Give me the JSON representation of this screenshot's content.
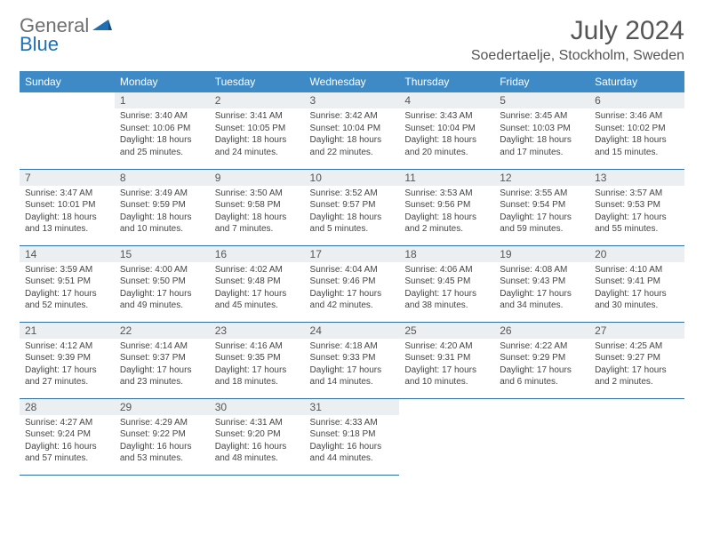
{
  "logo": {
    "gray": "General",
    "blue": "Blue"
  },
  "title": "July 2024",
  "location": "Soedertaelje, Stockholm, Sweden",
  "colors": {
    "header_bg": "#3d8ac7",
    "header_text": "#ffffff",
    "daynum_bg": "#eceff1",
    "row_border": "#2f6fa8",
    "logo_gray": "#6f6f6f",
    "logo_blue": "#1f6fb5"
  },
  "calendar": {
    "weekdays": [
      "Sunday",
      "Monday",
      "Tuesday",
      "Wednesday",
      "Thursday",
      "Friday",
      "Saturday"
    ],
    "first_weekday_index": 1,
    "days": [
      {
        "n": 1,
        "sunrise": "3:40 AM",
        "sunset": "10:06 PM",
        "daylight": "18 hours and 25 minutes."
      },
      {
        "n": 2,
        "sunrise": "3:41 AM",
        "sunset": "10:05 PM",
        "daylight": "18 hours and 24 minutes."
      },
      {
        "n": 3,
        "sunrise": "3:42 AM",
        "sunset": "10:04 PM",
        "daylight": "18 hours and 22 minutes."
      },
      {
        "n": 4,
        "sunrise": "3:43 AM",
        "sunset": "10:04 PM",
        "daylight": "18 hours and 20 minutes."
      },
      {
        "n": 5,
        "sunrise": "3:45 AM",
        "sunset": "10:03 PM",
        "daylight": "18 hours and 17 minutes."
      },
      {
        "n": 6,
        "sunrise": "3:46 AM",
        "sunset": "10:02 PM",
        "daylight": "18 hours and 15 minutes."
      },
      {
        "n": 7,
        "sunrise": "3:47 AM",
        "sunset": "10:01 PM",
        "daylight": "18 hours and 13 minutes."
      },
      {
        "n": 8,
        "sunrise": "3:49 AM",
        "sunset": "9:59 PM",
        "daylight": "18 hours and 10 minutes."
      },
      {
        "n": 9,
        "sunrise": "3:50 AM",
        "sunset": "9:58 PM",
        "daylight": "18 hours and 7 minutes."
      },
      {
        "n": 10,
        "sunrise": "3:52 AM",
        "sunset": "9:57 PM",
        "daylight": "18 hours and 5 minutes."
      },
      {
        "n": 11,
        "sunrise": "3:53 AM",
        "sunset": "9:56 PM",
        "daylight": "18 hours and 2 minutes."
      },
      {
        "n": 12,
        "sunrise": "3:55 AM",
        "sunset": "9:54 PM",
        "daylight": "17 hours and 59 minutes."
      },
      {
        "n": 13,
        "sunrise": "3:57 AM",
        "sunset": "9:53 PM",
        "daylight": "17 hours and 55 minutes."
      },
      {
        "n": 14,
        "sunrise": "3:59 AM",
        "sunset": "9:51 PM",
        "daylight": "17 hours and 52 minutes."
      },
      {
        "n": 15,
        "sunrise": "4:00 AM",
        "sunset": "9:50 PM",
        "daylight": "17 hours and 49 minutes."
      },
      {
        "n": 16,
        "sunrise": "4:02 AM",
        "sunset": "9:48 PM",
        "daylight": "17 hours and 45 minutes."
      },
      {
        "n": 17,
        "sunrise": "4:04 AM",
        "sunset": "9:46 PM",
        "daylight": "17 hours and 42 minutes."
      },
      {
        "n": 18,
        "sunrise": "4:06 AM",
        "sunset": "9:45 PM",
        "daylight": "17 hours and 38 minutes."
      },
      {
        "n": 19,
        "sunrise": "4:08 AM",
        "sunset": "9:43 PM",
        "daylight": "17 hours and 34 minutes."
      },
      {
        "n": 20,
        "sunrise": "4:10 AM",
        "sunset": "9:41 PM",
        "daylight": "17 hours and 30 minutes."
      },
      {
        "n": 21,
        "sunrise": "4:12 AM",
        "sunset": "9:39 PM",
        "daylight": "17 hours and 27 minutes."
      },
      {
        "n": 22,
        "sunrise": "4:14 AM",
        "sunset": "9:37 PM",
        "daylight": "17 hours and 23 minutes."
      },
      {
        "n": 23,
        "sunrise": "4:16 AM",
        "sunset": "9:35 PM",
        "daylight": "17 hours and 18 minutes."
      },
      {
        "n": 24,
        "sunrise": "4:18 AM",
        "sunset": "9:33 PM",
        "daylight": "17 hours and 14 minutes."
      },
      {
        "n": 25,
        "sunrise": "4:20 AM",
        "sunset": "9:31 PM",
        "daylight": "17 hours and 10 minutes."
      },
      {
        "n": 26,
        "sunrise": "4:22 AM",
        "sunset": "9:29 PM",
        "daylight": "17 hours and 6 minutes."
      },
      {
        "n": 27,
        "sunrise": "4:25 AM",
        "sunset": "9:27 PM",
        "daylight": "17 hours and 2 minutes."
      },
      {
        "n": 28,
        "sunrise": "4:27 AM",
        "sunset": "9:24 PM",
        "daylight": "16 hours and 57 minutes."
      },
      {
        "n": 29,
        "sunrise": "4:29 AM",
        "sunset": "9:22 PM",
        "daylight": "16 hours and 53 minutes."
      },
      {
        "n": 30,
        "sunrise": "4:31 AM",
        "sunset": "9:20 PM",
        "daylight": "16 hours and 48 minutes."
      },
      {
        "n": 31,
        "sunrise": "4:33 AM",
        "sunset": "9:18 PM",
        "daylight": "16 hours and 44 minutes."
      }
    ],
    "labels": {
      "sunrise": "Sunrise:",
      "sunset": "Sunset:",
      "daylight": "Daylight:"
    }
  }
}
